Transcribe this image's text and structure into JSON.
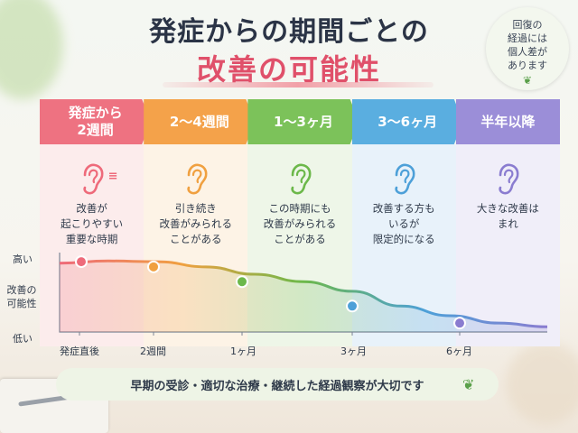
{
  "title": {
    "line1": "発症からの期間ごとの",
    "line2": "改善の可能性"
  },
  "badge": {
    "lines": [
      "回復の",
      "経過には",
      "個人差が",
      "あります"
    ],
    "icon": "sprout-icon"
  },
  "steps": [
    {
      "label_lines": [
        "発症から",
        "2週間"
      ],
      "color": "#ee7281",
      "bg": "#fcecec",
      "ear_color": "#ee6a7a",
      "icon": "ear-with-sound-icon",
      "desc_lines": [
        "改善が",
        "起こりやすい",
        "重要な時期"
      ]
    },
    {
      "label_lines": [
        "2〜4週間"
      ],
      "color": "#f4a24a",
      "bg": "#fdf3e6",
      "ear_color": "#f0a040",
      "icon": "ear-icon",
      "desc_lines": [
        "引き続き",
        "改善がみられる",
        "ことがある"
      ]
    },
    {
      "label_lines": [
        "1〜3ヶ月"
      ],
      "color": "#7cc25a",
      "bg": "#eef6e8",
      "ear_color": "#6cb84a",
      "icon": "ear-icon",
      "desc_lines": [
        "この時期にも",
        "改善がみられる",
        "ことがある"
      ]
    },
    {
      "label_lines": [
        "3〜6ヶ月"
      ],
      "color": "#5aaee0",
      "bg": "#e8f2fa",
      "ear_color": "#4da0d8",
      "icon": "ear-icon",
      "desc_lines": [
        "改善する方も",
        "いるが",
        "限定的になる"
      ]
    },
    {
      "label_lines": [
        "半年以降"
      ],
      "color": "#9b8ed8",
      "bg": "#f0eef9",
      "ear_color": "#8a7cd0",
      "icon": "ear-icon",
      "desc_lines": [
        "大きな改善は",
        "まれ"
      ]
    }
  ],
  "chart_data": {
    "type": "line",
    "ylabel": "改善の可能性",
    "y_ticks": [
      "高い",
      "低い"
    ],
    "x_ticks": [
      "発症直後",
      "2週間",
      "1ヶ月",
      "3ヶ月",
      "6ヶ月"
    ],
    "markers": [
      {
        "x_label": "発症から2週間",
        "value": 0.95,
        "color": "#ee6a7a"
      },
      {
        "x_label": "2〜4週間",
        "value": 0.88,
        "color": "#f0a040"
      },
      {
        "x_label": "1〜3ヶ月",
        "value": 0.68,
        "color": "#6cb84a"
      },
      {
        "x_label": "3〜6ヶ月",
        "value": 0.35,
        "color": "#4da0d8"
      },
      {
        "x_label": "半年以降",
        "value": 0.12,
        "color": "#8a7cd0"
      }
    ],
    "curve_values": [
      0.93,
      0.96,
      0.95,
      0.88,
      0.78,
      0.68,
      0.55,
      0.35,
      0.22,
      0.12,
      0.07
    ],
    "ylim": [
      0,
      1
    ]
  },
  "footer": {
    "text": "早期の受診・適切な治療・継続した経過観察が大切です",
    "icon": "leaf-icon"
  }
}
